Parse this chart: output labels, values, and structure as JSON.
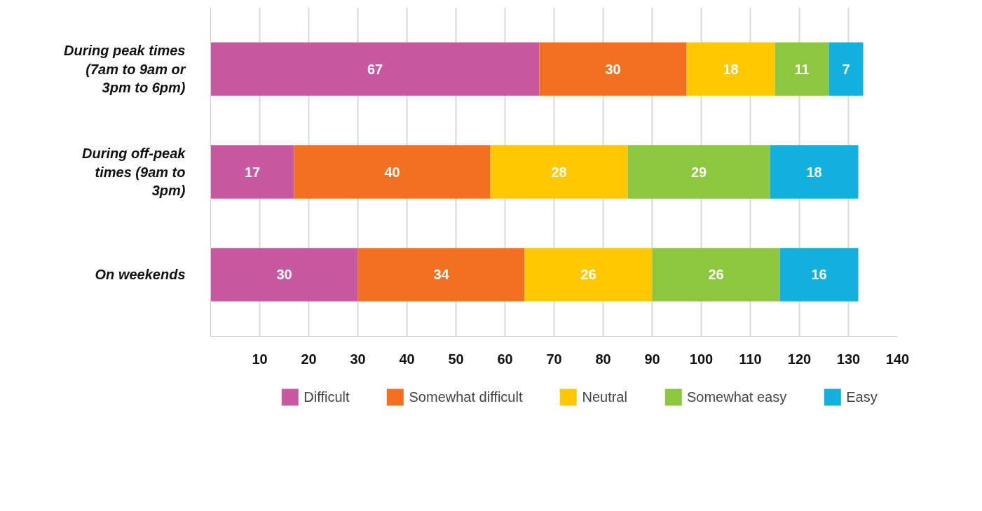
{
  "chart_data": {
    "type": "bar",
    "orientation": "horizontal",
    "stacked": true,
    "data_labels": true,
    "grid": "x",
    "legend": "bottom",
    "categories": [
      "During peak times (7am to 9am or 3pm to 6pm)",
      "During off-peak times (9am to 3pm)",
      "On weekends"
    ],
    "xlim": [
      0,
      140
    ],
    "xticks": [
      {
        "value": 0,
        "label": null
      },
      10,
      20,
      30,
      40,
      50,
      60,
      70,
      80,
      90,
      100,
      110,
      120,
      130,
      140
    ],
    "series": [
      {
        "name": "Difficult",
        "color": "#c858a0",
        "values": [
          67,
          17,
          30
        ]
      },
      {
        "name": "Somewhat difficult",
        "color": "#f37021",
        "values": [
          30,
          40,
          34
        ]
      },
      {
        "name": "Neutral",
        "color": "#ffc800",
        "values": [
          18,
          28,
          26
        ]
      },
      {
        "name": "Somewhat easy",
        "color": "#8dc63f",
        "values": [
          11,
          29,
          26
        ]
      },
      {
        "name": "Easy",
        "color": "#12b0dc",
        "values": [
          7,
          18,
          16
        ]
      }
    ]
  }
}
